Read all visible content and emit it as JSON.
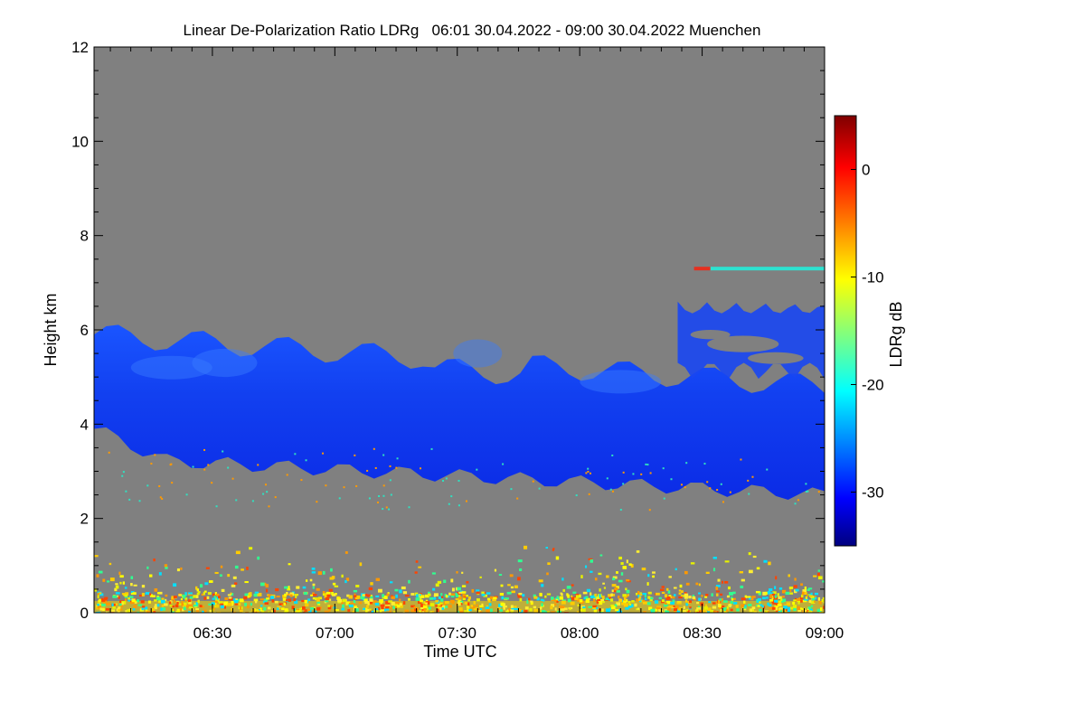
{
  "chart_data": {
    "type": "heatmap",
    "title": "Linear De-Polarization Ratio LDRg   06:01 30.04.2022 - 09:00 30.04.2022 Muenchen",
    "xlabel": "Time UTC",
    "ylabel": "Height km",
    "xlim_minutes": [
      361,
      540
    ],
    "ylim": [
      0,
      12
    ],
    "x_ticks": [
      {
        "label": "06:30",
        "minutes": 390
      },
      {
        "label": "07:00",
        "minutes": 420
      },
      {
        "label": "07:30",
        "minutes": 450
      },
      {
        "label": "08:00",
        "minutes": 480
      },
      {
        "label": "08:30",
        "minutes": 510
      },
      {
        "label": "09:00",
        "minutes": 540
      }
    ],
    "y_ticks": [
      0,
      2,
      4,
      6,
      8,
      10,
      12
    ],
    "background_color": "#808080",
    "colorbar": {
      "label": "LDRg dB",
      "range": [
        -35,
        5
      ],
      "ticks": [
        0,
        -10,
        -20,
        -30
      ],
      "colormap": "jet"
    },
    "features": [
      {
        "name": "ice cloud layer",
        "start_minutes": 361,
        "end_minutes": 540,
        "base_km": [
          3.3,
          2.5
        ],
        "top_km": [
          5.9,
          4.8
        ],
        "ldr_db": -28
      },
      {
        "name": "upper cloud patch",
        "start_minutes": 504,
        "end_minutes": 540,
        "base_km": 4.9,
        "top_km": 6.6,
        "ldr_db": -28
      },
      {
        "name": "elevated thin layer",
        "start_minutes": 512,
        "end_minutes": 540,
        "height_km": 7.3,
        "ldr_db": -20
      },
      {
        "name": "boundary layer aerosol",
        "start_minutes": 361,
        "end_minutes": 540,
        "base_km": 0,
        "top_km": 1.5,
        "ldr_db": -12
      }
    ]
  }
}
